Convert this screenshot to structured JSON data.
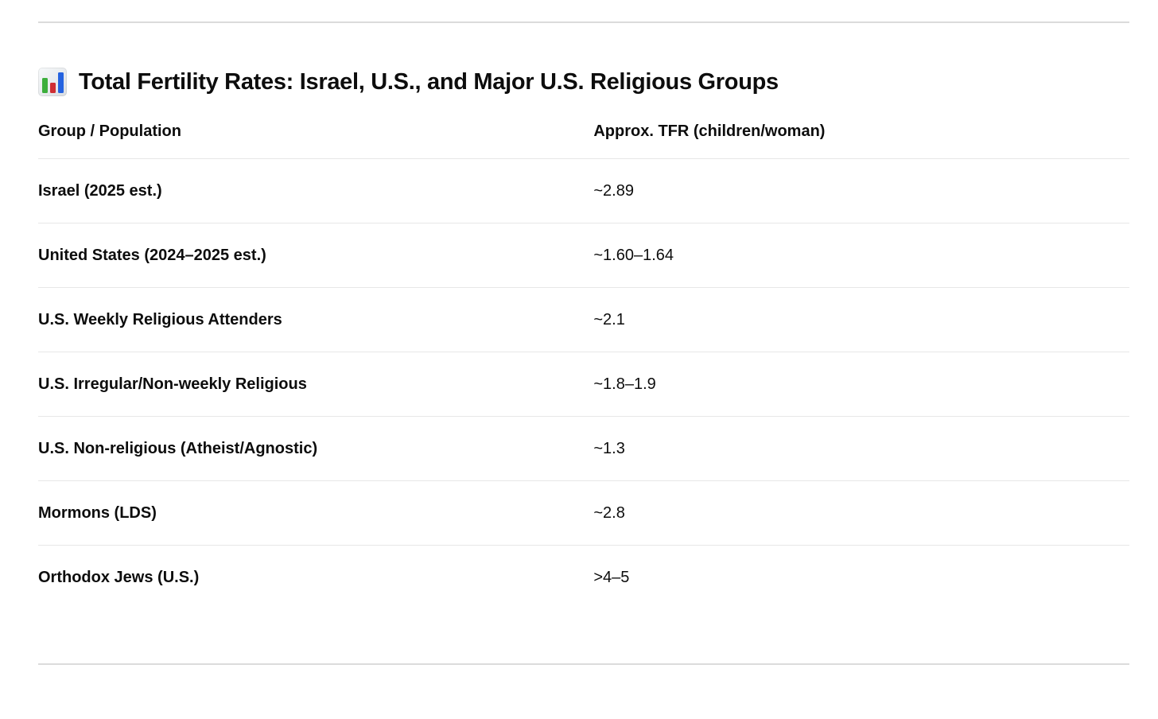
{
  "heading": {
    "icon": "bar-chart-emoji",
    "text": "Total Fertility Rates: Israel, U.S., and Major U.S. Religious Groups"
  },
  "table": {
    "columns": [
      "Group / Population",
      "Approx. TFR (children/woman)"
    ],
    "rows": [
      {
        "group": "Israel (2025 est.)",
        "tfr": "~2.89"
      },
      {
        "group": "United States (2024–2025 est.)",
        "tfr": "~1.60–1.64"
      },
      {
        "group": "U.S. Weekly Religious Attenders",
        "tfr": "~2.1"
      },
      {
        "group": "U.S. Irregular/Non-weekly Religious",
        "tfr": "~1.8–1.9"
      },
      {
        "group": "U.S. Non-religious (Atheist/Agnostic)",
        "tfr": "~1.3"
      },
      {
        "group": "Mormons (LDS)",
        "tfr": "~2.8"
      },
      {
        "group": "Orthodox Jews (U.S.)",
        "tfr": ">4–5"
      }
    ]
  },
  "colors": {
    "text": "#0d0d0d",
    "turn_divider": "#dbdbdb",
    "row_divider": "#e7e7e7",
    "emoji_bar_green": "#3cae3c",
    "emoji_bar_red": "#cf2e34",
    "emoji_bar_blue": "#2563e0"
  }
}
